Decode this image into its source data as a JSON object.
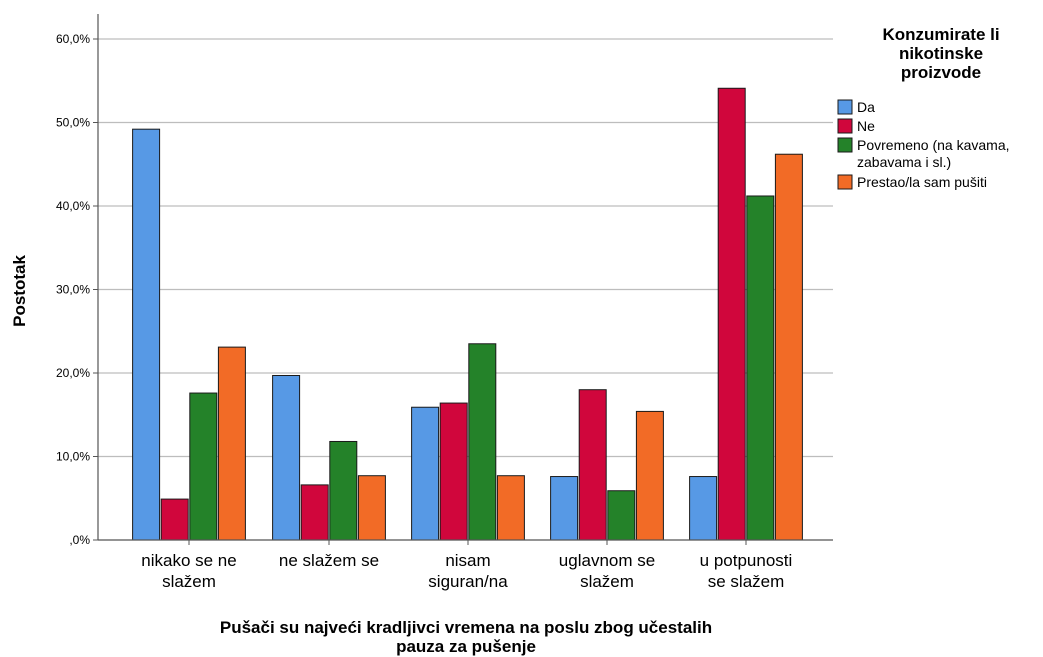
{
  "chart_data": {
    "type": "bar",
    "xlabel_lines": [
      "Pušači su najveći kradljivci vremena na poslu zbog učestalih",
      "pauza za pušenje"
    ],
    "ylabel": "Postotak",
    "ylim": [
      0,
      60
    ],
    "yticks": [
      0,
      10,
      20,
      30,
      40,
      50,
      60
    ],
    "ytick_labels": [
      ",0%",
      "10,0%",
      "20,0%",
      "30,0%",
      "40,0%",
      "50,0%",
      "60,0%"
    ],
    "grid": true,
    "categories": [
      [
        "nikako se ne",
        "slažem"
      ],
      [
        "ne slažem se"
      ],
      [
        "nisam",
        "siguran/na"
      ],
      [
        "uglavnom se",
        "slažem"
      ],
      [
        "u potpunosti",
        "se slažem"
      ]
    ],
    "series": [
      {
        "name": "Da",
        "color": "#5799E5",
        "values": [
          49.2,
          19.7,
          15.9,
          7.6,
          7.6
        ]
      },
      {
        "name": "Ne",
        "color": "#D0063C",
        "values": [
          4.9,
          6.6,
          16.4,
          18.0,
          54.1
        ]
      },
      {
        "name": "Povremeno (na kavama, zabavama i sl.)",
        "legend_lines": [
          "Povremeno (na kavama,",
          "zabavama i sl.)"
        ],
        "color": "#248229",
        "values": [
          17.6,
          11.8,
          23.5,
          5.9,
          41.2
        ]
      },
      {
        "name": "Prestao/la sam pušiti",
        "legend_lines": [
          "Prestao/la sam pušiti"
        ],
        "color": "#F26B26",
        "values": [
          23.1,
          7.7,
          7.7,
          15.4,
          46.2
        ]
      }
    ],
    "legend": {
      "title_lines": [
        "Konzumirate li",
        "nikotinske",
        "proizvode"
      ],
      "placement": "right"
    }
  }
}
